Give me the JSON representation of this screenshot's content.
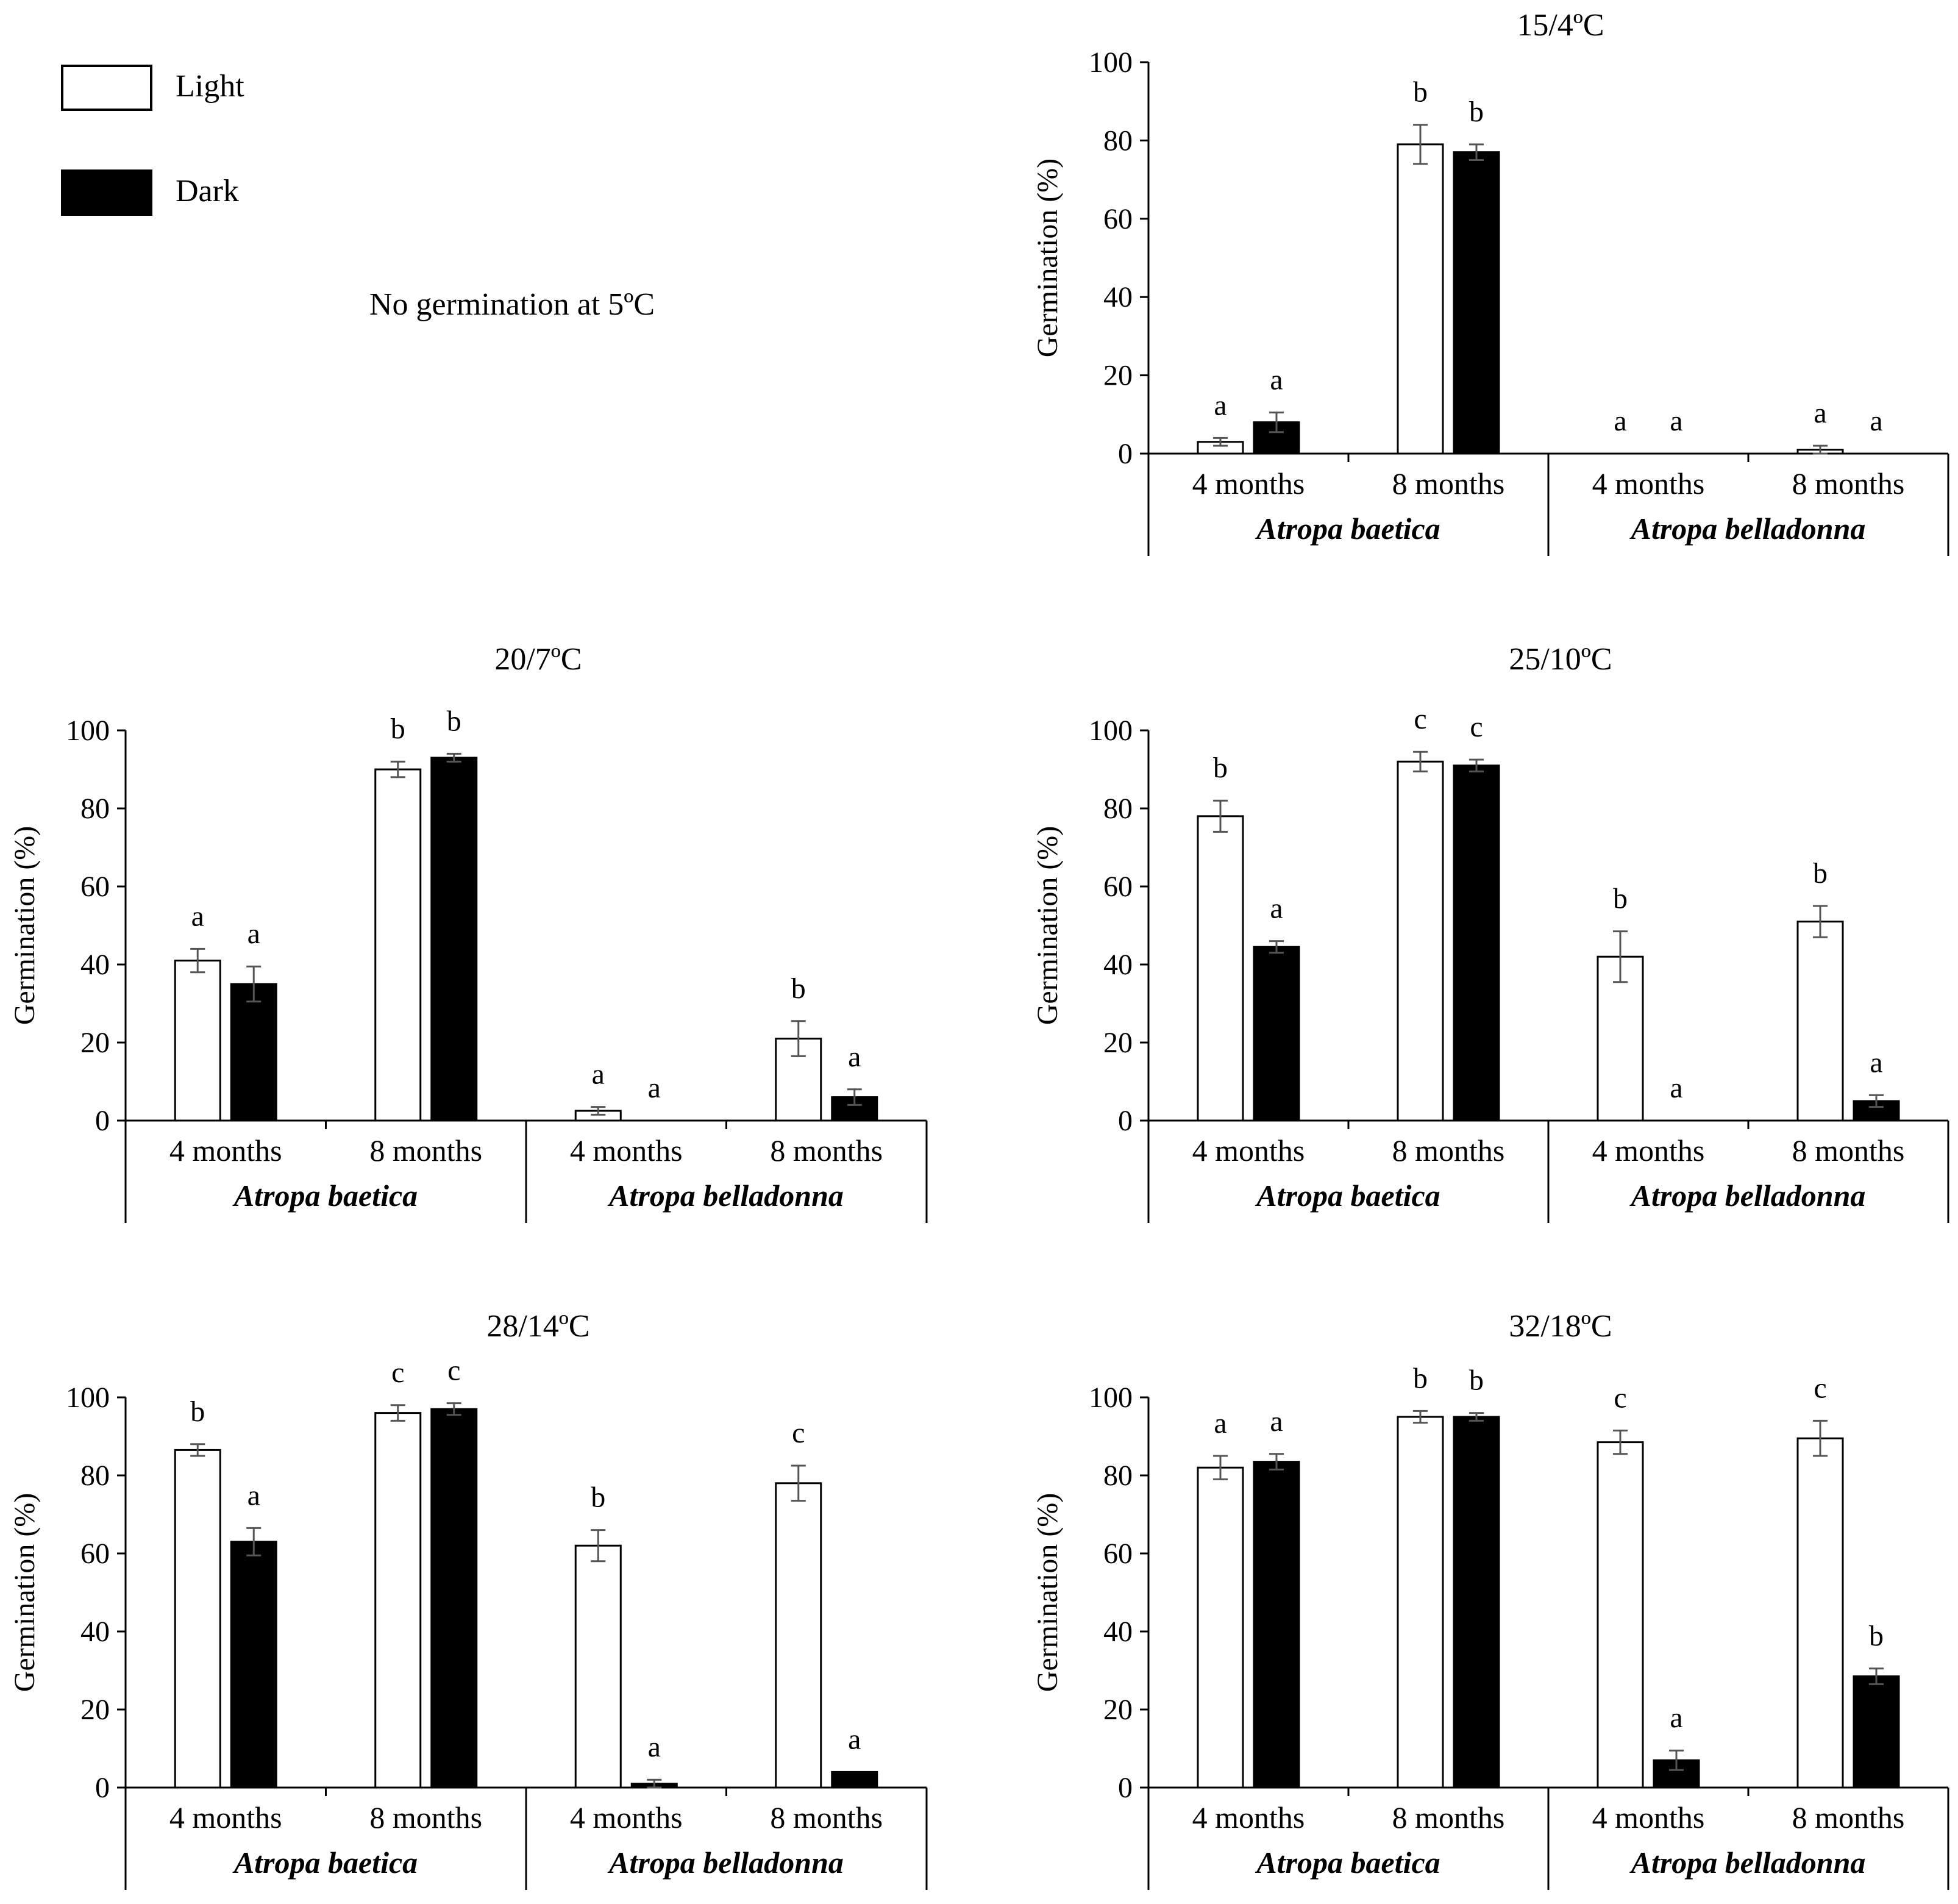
{
  "legend": {
    "light_label": "Light",
    "dark_label": "Dark"
  },
  "note": "No germination at 5ºC",
  "colors": {
    "light": "#ffffff",
    "dark": "#000000",
    "axis": "#000000",
    "error": "#555555"
  },
  "chart_data": [
    {
      "type": "bar",
      "title": "15/4ºC",
      "ylabel": "Germination (%)",
      "ylim": [
        0,
        100
      ],
      "yticks": [
        "0",
        "20",
        "40",
        "60",
        "80",
        "100"
      ],
      "groups": [
        "4 months",
        "8 months",
        "4 months",
        "8 months"
      ],
      "species": [
        "Atropa baetica",
        "Atropa belladonna"
      ],
      "series": [
        {
          "name": "Light",
          "values": [
            3,
            79,
            0,
            1
          ],
          "errors": [
            1,
            5,
            0,
            1
          ],
          "letters": [
            "a",
            "b",
            "a",
            "a"
          ]
        },
        {
          "name": "Dark",
          "values": [
            8,
            77,
            0,
            0
          ],
          "errors": [
            2.5,
            2,
            0,
            0
          ],
          "letters": [
            "a",
            "b",
            "a",
            "a"
          ]
        }
      ]
    },
    {
      "type": "bar",
      "title": "20/7ºC",
      "ylabel": "Germination (%)",
      "ylim": [
        0,
        100
      ],
      "yticks": [
        "0",
        "20",
        "40",
        "60",
        "80",
        "100"
      ],
      "groups": [
        "4 months",
        "8 months",
        "4 months",
        "8 months"
      ],
      "species": [
        "Atropa baetica",
        "Atropa belladonna"
      ],
      "series": [
        {
          "name": "Light",
          "values": [
            41,
            90,
            2.5,
            21
          ],
          "errors": [
            3,
            2,
            1,
            4.5
          ],
          "letters": [
            "a",
            "b",
            "a",
            "b"
          ]
        },
        {
          "name": "Dark",
          "values": [
            35,
            93,
            0,
            6
          ],
          "errors": [
            4.5,
            1,
            0,
            2
          ],
          "letters": [
            "a",
            "b",
            "a",
            "a"
          ]
        }
      ]
    },
    {
      "type": "bar",
      "title": "25/10ºC",
      "ylabel": "Germination (%)",
      "ylim": [
        0,
        100
      ],
      "yticks": [
        "0",
        "20",
        "40",
        "60",
        "80",
        "100"
      ],
      "groups": [
        "4 months",
        "8 months",
        "4 months",
        "8 months"
      ],
      "species": [
        "Atropa baetica",
        "Atropa belladonna"
      ],
      "series": [
        {
          "name": "Light",
          "values": [
            78,
            92,
            42,
            51
          ],
          "errors": [
            4,
            2.5,
            6.5,
            4
          ],
          "letters": [
            "b",
            "c",
            "b",
            "b"
          ]
        },
        {
          "name": "Dark",
          "values": [
            44.5,
            91,
            0,
            5
          ],
          "errors": [
            1.5,
            1.5,
            0,
            1.5
          ],
          "letters": [
            "a",
            "c",
            "a",
            "a"
          ]
        }
      ]
    },
    {
      "type": "bar",
      "title": "28/14ºC",
      "ylabel": "Germination (%)",
      "ylim": [
        0,
        100
      ],
      "yticks": [
        "0",
        "20",
        "40",
        "60",
        "80",
        "100"
      ],
      "groups": [
        "4 months",
        "8 months",
        "4 months",
        "8 months"
      ],
      "species": [
        "Atropa baetica",
        "Atropa belladonna"
      ],
      "series": [
        {
          "name": "Light",
          "values": [
            86.5,
            96,
            62,
            78
          ],
          "errors": [
            1.5,
            2,
            4,
            4.5
          ],
          "letters": [
            "b",
            "c",
            "b",
            "c"
          ]
        },
        {
          "name": "Dark",
          "values": [
            63,
            97,
            1,
            4
          ],
          "errors": [
            3.5,
            1.5,
            1,
            0
          ],
          "letters": [
            "a",
            "c",
            "a",
            "a"
          ]
        }
      ]
    },
    {
      "type": "bar",
      "title": "32/18ºC",
      "ylabel": "Germination (%)",
      "ylim": [
        0,
        100
      ],
      "yticks": [
        "0",
        "20",
        "40",
        "60",
        "80",
        "100"
      ],
      "groups": [
        "4 months",
        "8 months",
        "4 months",
        "8 months"
      ],
      "species": [
        "Atropa baetica",
        "Atropa belladonna"
      ],
      "series": [
        {
          "name": "Light",
          "values": [
            82,
            95,
            88.5,
            89.5
          ],
          "errors": [
            3,
            1.5,
            3,
            4.5
          ],
          "letters": [
            "a",
            "b",
            "c",
            "c"
          ]
        },
        {
          "name": "Dark",
          "values": [
            83.5,
            95,
            7,
            28.5
          ],
          "errors": [
            2,
            1,
            2.5,
            2
          ],
          "letters": [
            "a",
            "b",
            "a",
            "b"
          ]
        }
      ]
    }
  ]
}
